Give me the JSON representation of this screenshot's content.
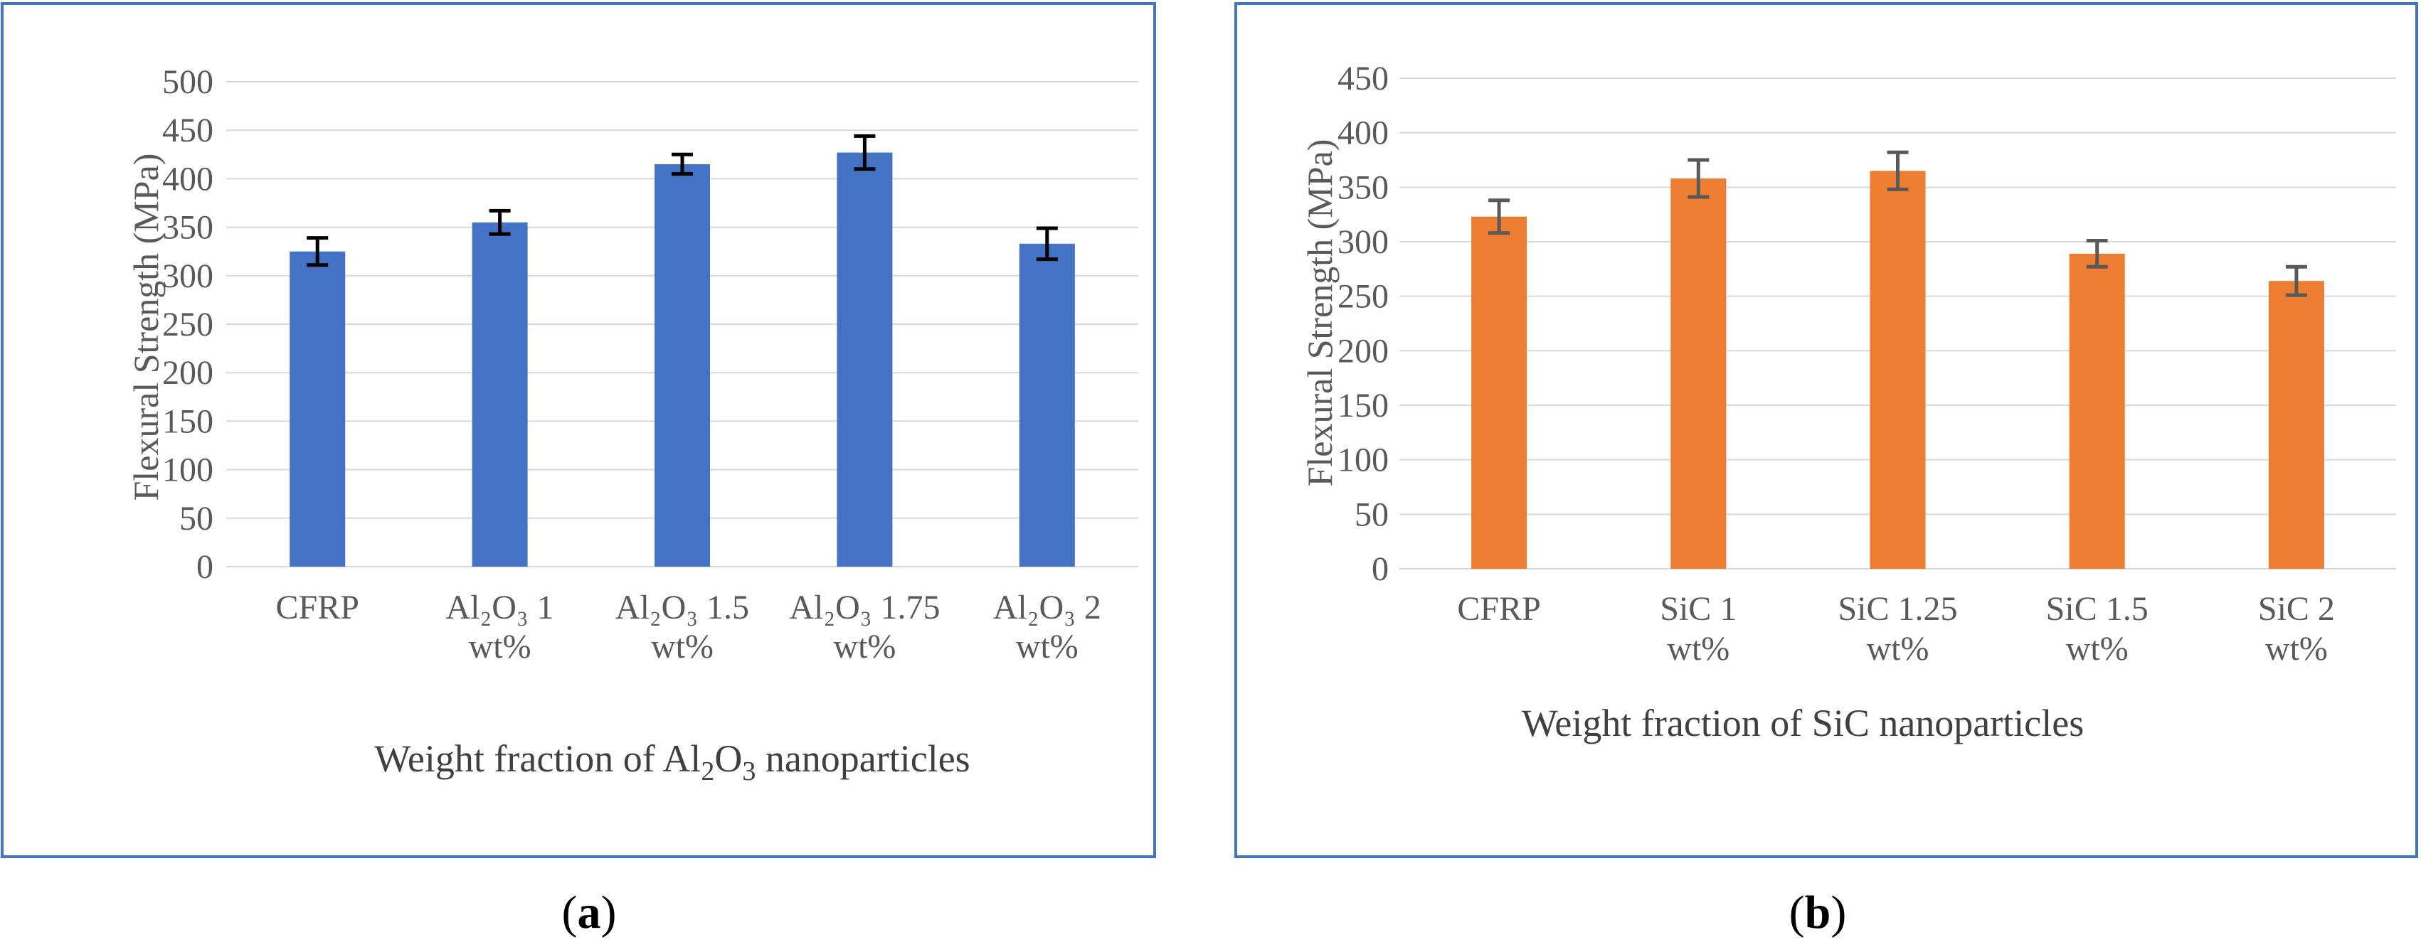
{
  "chart_data": [
    {
      "type": "bar",
      "panel": "a",
      "caption": "a",
      "categories": [
        [
          "CFRP"
        ],
        [
          "Al₂O₃ 1",
          "wt%"
        ],
        [
          "Al₂O₃ 1.5",
          "wt%"
        ],
        [
          "Al₂O₃ 1.75",
          "wt%"
        ],
        [
          "Al₂O₃ 2",
          "wt%"
        ]
      ],
      "values": [
        325,
        355,
        415,
        427,
        333
      ],
      "errors": [
        14,
        12,
        10,
        17,
        16
      ],
      "ylabel": "Flexural Strength (MPa)",
      "xlabel": "Weight fraction of  Al2O3  nanoparticles",
      "ylim": [
        0,
        500
      ],
      "yticks": [
        0,
        50,
        100,
        150,
        200,
        250,
        300,
        350,
        400,
        450,
        500
      ],
      "color": "#4472C4",
      "errorbar_color": "#000000",
      "frame_color": "#4472C4",
      "grid": true
    },
    {
      "type": "bar",
      "panel": "b",
      "caption": "b",
      "categories": [
        [
          "CFRP"
        ],
        [
          "SiC 1",
          "wt%"
        ],
        [
          "SiC 1.25",
          "wt%"
        ],
        [
          "SiC 1.5",
          "wt%"
        ],
        [
          "SiC 2",
          "wt%"
        ]
      ],
      "values": [
        323,
        358,
        365,
        289,
        264
      ],
      "errors": [
        15,
        17,
        17,
        12,
        13
      ],
      "ylabel": "Flexural Strength (MPa)",
      "xlabel": "Weight fraction of  SiC nanoparticles",
      "ylim": [
        0,
        450
      ],
      "yticks": [
        0,
        50,
        100,
        150,
        200,
        250,
        300,
        350,
        400,
        450
      ],
      "color": "#ED7D31",
      "errorbar_color": "#595959",
      "frame_color": "#4472C4",
      "grid": true
    }
  ]
}
